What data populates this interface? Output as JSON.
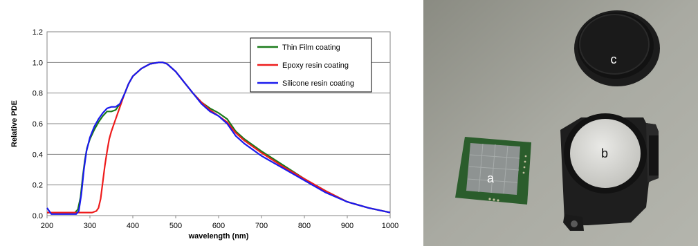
{
  "chart_data": {
    "type": "line",
    "title": "",
    "xlabel": "wavelength (nm)",
    "ylabel": "Relative PDE",
    "xlim": [
      200,
      1000
    ],
    "ylim": [
      0,
      1.2
    ],
    "xticks": [
      200,
      300,
      400,
      500,
      600,
      700,
      800,
      900,
      1000
    ],
    "yticks": [
      0.0,
      0.2,
      0.4,
      0.6,
      0.8,
      1.0,
      1.2
    ],
    "xtick_labels": [
      "200",
      "300",
      "400",
      "500",
      "600",
      "700",
      "800",
      "900",
      "1000"
    ],
    "ytick_labels": [
      "0.0",
      "0.2",
      "0.4",
      "0.6",
      "0.8",
      "1.0",
      "1.2"
    ],
    "grid": "horizontal",
    "legend_position": "top-right",
    "series": [
      {
        "name": "Thin Film coating",
        "color": "#1a7a1a",
        "x": [
          200,
          210,
          230,
          250,
          265,
          272,
          278,
          283,
          288,
          293,
          300,
          310,
          320,
          330,
          340,
          350,
          360,
          370,
          380,
          390,
          400,
          420,
          440,
          460,
          470,
          480,
          500,
          520,
          540,
          560,
          580,
          600,
          620,
          640,
          660,
          700,
          750,
          800,
          850,
          900,
          950,
          1000
        ],
        "y": [
          0.02,
          0.02,
          0.02,
          0.02,
          0.02,
          0.04,
          0.12,
          0.25,
          0.36,
          0.44,
          0.5,
          0.56,
          0.61,
          0.65,
          0.68,
          0.68,
          0.69,
          0.73,
          0.79,
          0.86,
          0.91,
          0.96,
          0.99,
          1.0,
          1.0,
          0.99,
          0.94,
          0.87,
          0.8,
          0.74,
          0.7,
          0.67,
          0.63,
          0.55,
          0.5,
          0.42,
          0.33,
          0.24,
          0.16,
          0.09,
          0.05,
          0.02
        ]
      },
      {
        "name": "Epoxy resin coating",
        "color": "#ee1c1c",
        "x": [
          200,
          210,
          230,
          250,
          270,
          290,
          305,
          315,
          320,
          325,
          330,
          335,
          340,
          345,
          350,
          360,
          370,
          380,
          390,
          400,
          420,
          440,
          460,
          470,
          480,
          500,
          520,
          540,
          560,
          580,
          600,
          620,
          640,
          660,
          700,
          750,
          800,
          850,
          900,
          950,
          1000
        ],
        "y": [
          0.02,
          0.02,
          0.02,
          0.02,
          0.02,
          0.02,
          0.02,
          0.03,
          0.05,
          0.11,
          0.22,
          0.33,
          0.42,
          0.5,
          0.55,
          0.63,
          0.71,
          0.79,
          0.86,
          0.91,
          0.96,
          0.99,
          1.0,
          1.0,
          0.99,
          0.94,
          0.87,
          0.8,
          0.74,
          0.69,
          0.65,
          0.61,
          0.54,
          0.49,
          0.41,
          0.32,
          0.24,
          0.16,
          0.09,
          0.05,
          0.02
        ]
      },
      {
        "name": "Silicone resin coating",
        "color": "#1a1aee",
        "x": [
          200,
          205,
          210,
          220,
          240,
          260,
          268,
          274,
          280,
          286,
          292,
          300,
          310,
          320,
          330,
          340,
          350,
          360,
          370,
          380,
          390,
          400,
          420,
          440,
          460,
          470,
          480,
          500,
          520,
          540,
          560,
          580,
          600,
          620,
          640,
          660,
          700,
          750,
          800,
          850,
          900,
          950,
          1000
        ],
        "y": [
          0.05,
          0.03,
          0.01,
          0.01,
          0.01,
          0.01,
          0.01,
          0.03,
          0.14,
          0.3,
          0.42,
          0.51,
          0.58,
          0.63,
          0.67,
          0.7,
          0.71,
          0.71,
          0.73,
          0.79,
          0.86,
          0.91,
          0.96,
          0.99,
          1.0,
          1.0,
          0.99,
          0.94,
          0.87,
          0.8,
          0.73,
          0.68,
          0.65,
          0.6,
          0.52,
          0.47,
          0.39,
          0.31,
          0.23,
          0.15,
          0.09,
          0.05,
          0.02
        ]
      }
    ]
  },
  "photo": {
    "label_a": "a",
    "label_b": "b",
    "label_c": "c"
  }
}
